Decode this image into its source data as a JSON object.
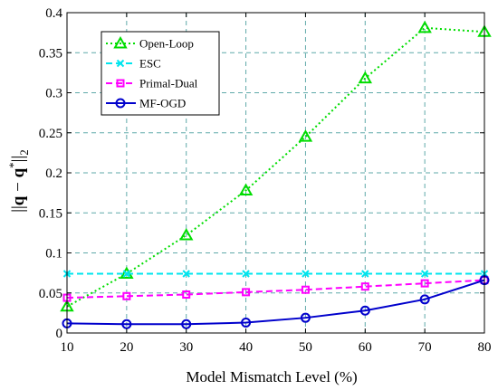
{
  "chart_data": {
    "type": "line",
    "title": "",
    "xlabel": "Model Mismatch Level (%)",
    "ylabel": {
      "norm_bar_left": "||",
      "q": "q",
      "minus": " − ",
      "q_star": "q",
      "star": "*",
      "norm_bar_right": "||",
      "sub": "2"
    },
    "x": [
      10,
      20,
      30,
      40,
      50,
      60,
      70,
      80
    ],
    "xlim": [
      10,
      80
    ],
    "ylim": [
      0,
      0.4
    ],
    "xticks": [
      "10",
      "20",
      "30",
      "40",
      "50",
      "60",
      "70",
      "80"
    ],
    "yticks": [
      "0",
      "0.05",
      "0.1",
      "0.15",
      "0.2",
      "0.25",
      "0.3",
      "0.35",
      "0.4"
    ],
    "grid": true,
    "legend_position": "top-left",
    "series": [
      {
        "name": "Open-Loop",
        "color": "#00dd00",
        "dash": "2,3",
        "marker": "triangle",
        "values": [
          0.033,
          0.074,
          0.122,
          0.178,
          0.245,
          0.318,
          0.381,
          0.376
        ]
      },
      {
        "name": "ESC",
        "color": "#00e5ee",
        "dash": "7,4",
        "marker": "x",
        "values": [
          0.074,
          0.074,
          0.074,
          0.074,
          0.074,
          0.074,
          0.074,
          0.074
        ]
      },
      {
        "name": "Primal-Dual",
        "color": "#ff00ff",
        "dash": "7,4",
        "marker": "square",
        "values": [
          0.044,
          0.046,
          0.048,
          0.051,
          0.054,
          0.058,
          0.062,
          0.066
        ]
      },
      {
        "name": "MF-OGD",
        "color": "#0000cc",
        "dash": "",
        "marker": "circle",
        "values": [
          0.012,
          0.011,
          0.011,
          0.013,
          0.019,
          0.028,
          0.042,
          0.066
        ]
      }
    ]
  }
}
